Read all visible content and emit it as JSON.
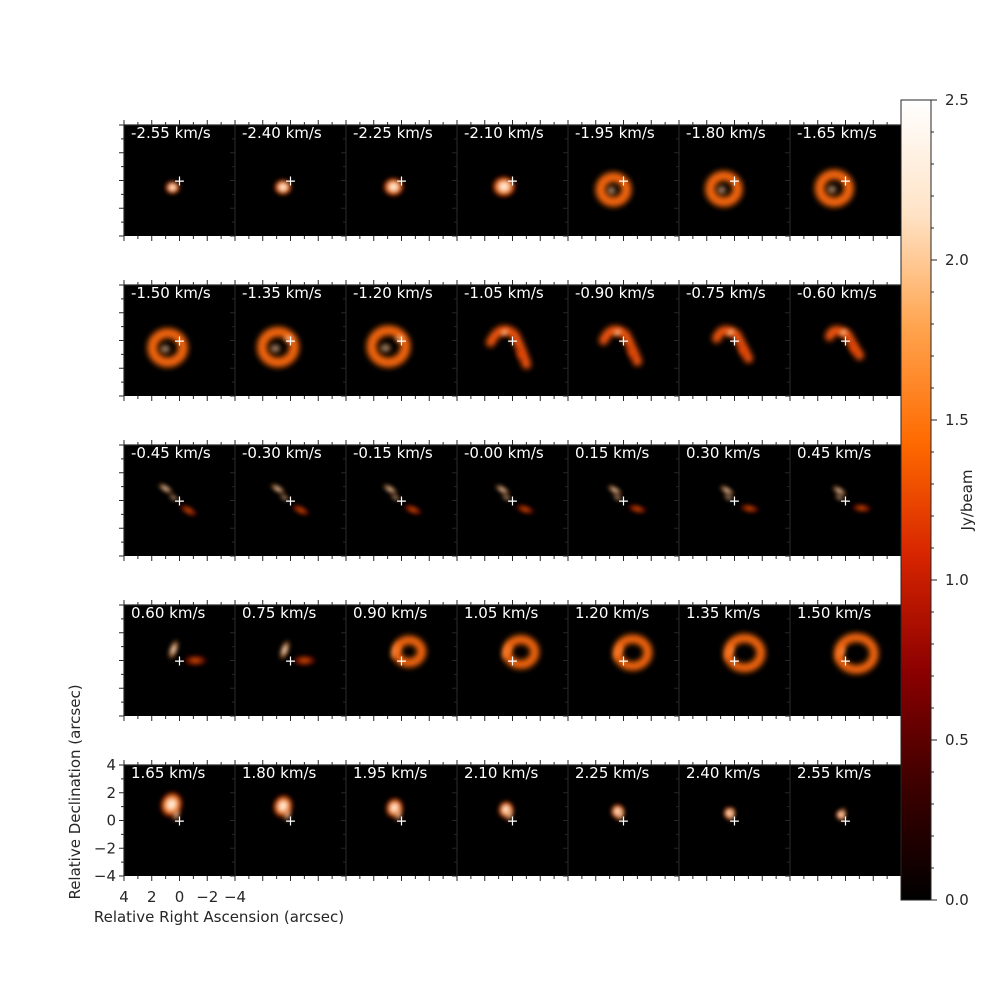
{
  "chart_data": {
    "type": "heatmap",
    "title": "",
    "xlabel": "Relative Right Ascension (arcsec)",
    "ylabel": "Relative Declination (arcsec)",
    "xlim": [
      4,
      -4
    ],
    "ylim": [
      -4,
      4
    ],
    "x_ticks": [
      "4",
      "2",
      "0",
      "−2",
      "−4"
    ],
    "y_ticks": [
      "4",
      "2",
      "0",
      "−2",
      "−4"
    ],
    "grid": false,
    "rows": 5,
    "cols": 7,
    "velocity_unit": "km/s",
    "velocities": [
      "-2.55 km/s",
      "-2.40 km/s",
      "-2.25 km/s",
      "-2.10 km/s",
      "-1.95 km/s",
      "-1.80 km/s",
      "-1.65 km/s",
      "-1.50 km/s",
      "-1.35 km/s",
      "-1.20 km/s",
      "-1.05 km/s",
      "-0.90 km/s",
      "-0.75 km/s",
      "-0.60 km/s",
      "-0.45 km/s",
      "-0.30 km/s",
      "-0.15 km/s",
      "-0.00 km/s",
      "0.15 km/s",
      "0.30 km/s",
      "0.45 km/s",
      "0.60 km/s",
      "0.75 km/s",
      "0.90 km/s",
      "1.05 km/s",
      "1.20 km/s",
      "1.35 km/s",
      "1.50 km/s",
      "1.65 km/s",
      "1.80 km/s",
      "1.95 km/s",
      "2.10 km/s",
      "2.25 km/s",
      "2.40 km/s",
      "2.55 km/s"
    ],
    "colorbar": {
      "label": "Jy/beam",
      "range": [
        0.0,
        2.5
      ],
      "ticks": [
        "0.0",
        "0.5",
        "1.0",
        "1.5",
        "2.0",
        "2.5"
      ],
      "colormap": [
        "#000000",
        "#3d0000",
        "#8c0000",
        "#d62400",
        "#ff6a00",
        "#ffa34d",
        "#ffe3c6",
        "#ffffff"
      ]
    },
    "marker": "+",
    "background_color": "#000000"
  }
}
